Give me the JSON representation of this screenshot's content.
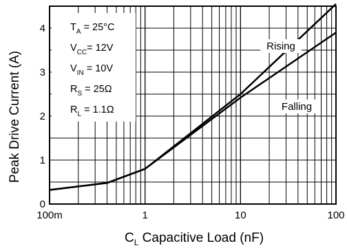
{
  "chart_data": {
    "type": "line",
    "xlabel": "C",
    "xlabel_sub": "L",
    "xlabel_rest": " Capacitive Load (nF)",
    "ylabel": "Peak Drive Current (A)",
    "x_scale": "log",
    "xlim": [
      0.1,
      100
    ],
    "ylim": [
      0,
      4.5
    ],
    "grid": true,
    "x_ticks": [
      {
        "value": 0.1,
        "label": "100m"
      },
      {
        "value": 1,
        "label": "1"
      },
      {
        "value": 10,
        "label": "10"
      },
      {
        "value": 100,
        "label": "100"
      }
    ],
    "y_ticks": [
      {
        "value": 0,
        "label": "0"
      },
      {
        "value": 1,
        "label": "1"
      },
      {
        "value": 2,
        "label": "2"
      },
      {
        "value": 3,
        "label": "3"
      },
      {
        "value": 4,
        "label": "4"
      }
    ],
    "conditions": [
      {
        "main": "T",
        "sub": "A",
        "rest": " = 25°C"
      },
      {
        "main": "V",
        "sub": "CC",
        "rest": "= 12V"
      },
      {
        "main": "V",
        "sub": "IN",
        "rest": " = 10V"
      },
      {
        "main": "R",
        "sub": "S",
        "rest": " = 25Ω"
      },
      {
        "main": "R",
        "sub": "L",
        "rest": " = 1.1Ω"
      }
    ],
    "series": [
      {
        "name": "Rising",
        "x": [
          0.1,
          0.4,
          1,
          10,
          100
        ],
        "y": [
          0.32,
          0.48,
          0.8,
          2.5,
          4.55
        ]
      },
      {
        "name": "Falling",
        "x": [
          0.1,
          0.4,
          1,
          10,
          100
        ],
        "y": [
          0.32,
          0.48,
          0.8,
          2.42,
          3.9
        ]
      }
    ]
  }
}
